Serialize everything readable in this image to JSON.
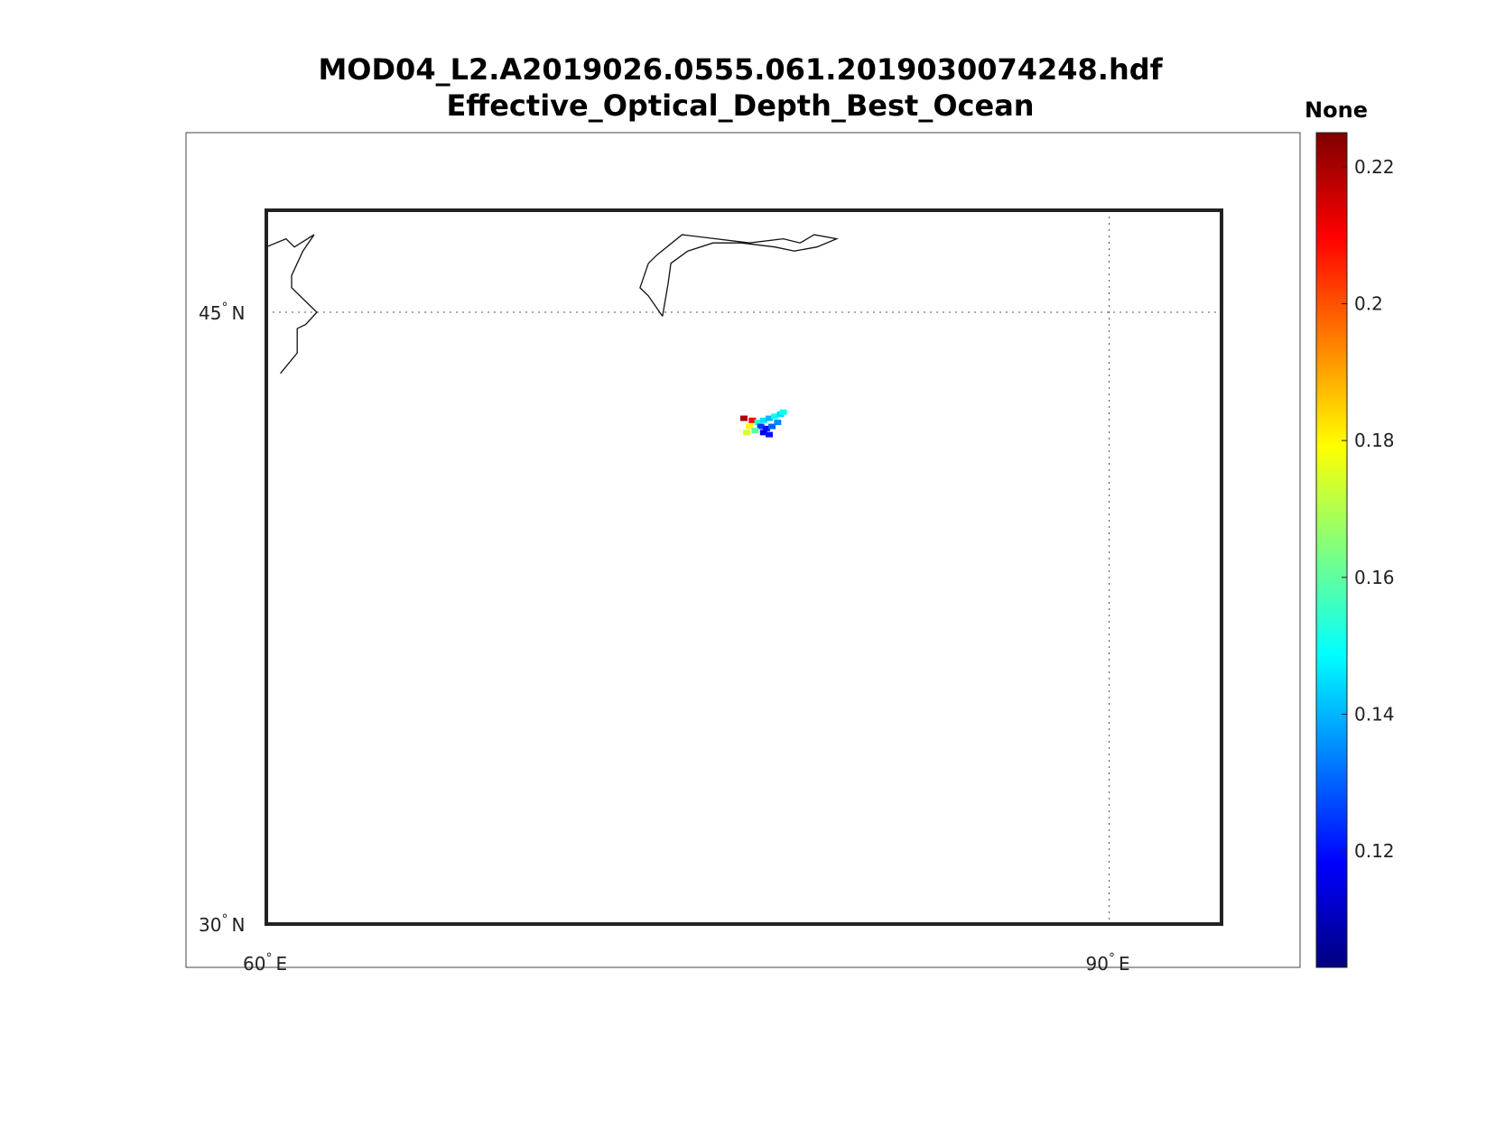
{
  "title": {
    "line1": "MOD04_L2.A2019026.0555.061.2019030074248.hdf",
    "line2": "Effective_Optical_Depth_Best_Ocean"
  },
  "map": {
    "lon_range": [
      60,
      94
    ],
    "lat_range": [
      30,
      47.5
    ],
    "parallels": [
      {
        "value": 30,
        "label": "30",
        "hem": "N"
      },
      {
        "value": 45,
        "label": "45",
        "hem": "N"
      }
    ],
    "meridians": [
      {
        "value": 60,
        "label": "60",
        "hem": "E"
      },
      {
        "value": 90,
        "label": "90",
        "hem": "E"
      }
    ],
    "coastlines": [
      [
        [
          60.0,
          46.3
        ],
        [
          60.0,
          46.6
        ],
        [
          60.7,
          46.8
        ],
        [
          61.0,
          46.6
        ],
        [
          61.7,
          46.9
        ],
        [
          61.3,
          46.5
        ],
        [
          60.9,
          45.9
        ],
        [
          60.9,
          45.6
        ],
        [
          61.8,
          45.0
        ],
        [
          61.4,
          44.7
        ],
        [
          61.1,
          44.6
        ],
        [
          61.1,
          44.0
        ],
        [
          60.5,
          43.5
        ]
      ],
      [
        [
          74.1,
          44.9
        ],
        [
          74.3,
          45.7
        ],
        [
          74.4,
          46.2
        ],
        [
          75.0,
          46.5
        ],
        [
          75.9,
          46.7
        ],
        [
          76.9,
          46.7
        ],
        [
          78.1,
          46.6
        ],
        [
          78.8,
          46.5
        ],
        [
          79.6,
          46.6
        ],
        [
          80.3,
          46.8
        ],
        [
          79.5,
          46.9
        ],
        [
          79.0,
          46.7
        ],
        [
          78.4,
          46.8
        ],
        [
          77.2,
          46.7
        ],
        [
          76.0,
          46.8
        ],
        [
          74.8,
          46.9
        ],
        [
          73.9,
          46.4
        ],
        [
          73.6,
          46.2
        ],
        [
          73.3,
          45.6
        ],
        [
          73.6,
          45.4
        ],
        [
          74.1,
          44.9
        ]
      ]
    ],
    "aod_pixels": [
      {
        "lon": 77.0,
        "lat": 42.4,
        "value": 0.22
      },
      {
        "lon": 77.3,
        "lat": 42.35,
        "value": 0.21
      },
      {
        "lon": 77.2,
        "lat": 42.2,
        "value": 0.18
      },
      {
        "lon": 77.5,
        "lat": 42.3,
        "value": 0.155
      },
      {
        "lon": 77.7,
        "lat": 42.35,
        "value": 0.145
      },
      {
        "lon": 77.9,
        "lat": 42.4,
        "value": 0.14
      },
      {
        "lon": 78.1,
        "lat": 42.45,
        "value": 0.15
      },
      {
        "lon": 78.3,
        "lat": 42.5,
        "value": 0.145
      },
      {
        "lon": 77.6,
        "lat": 42.2,
        "value": 0.125
      },
      {
        "lon": 77.8,
        "lat": 42.15,
        "value": 0.12
      },
      {
        "lon": 78.0,
        "lat": 42.2,
        "value": 0.13
      },
      {
        "lon": 78.2,
        "lat": 42.3,
        "value": 0.135
      },
      {
        "lon": 77.7,
        "lat": 42.05,
        "value": 0.115
      },
      {
        "lon": 77.9,
        "lat": 42.0,
        "value": 0.12
      },
      {
        "lon": 77.4,
        "lat": 42.1,
        "value": 0.16
      },
      {
        "lon": 77.1,
        "lat": 42.05,
        "value": 0.175
      },
      {
        "lon": 78.4,
        "lat": 42.55,
        "value": 0.15
      }
    ]
  },
  "colorbar": {
    "title": "None",
    "min": 0.103,
    "max": 0.225,
    "ticks": [
      0.12,
      0.14,
      0.16,
      0.18,
      0.2,
      0.22
    ],
    "tick_labels": [
      "0.12",
      "0.14",
      "0.16",
      "0.18",
      "0.2",
      "0.22"
    ],
    "colormap": [
      "#00007f",
      "#0000ff",
      "#007fff",
      "#00ffff",
      "#7fff7f",
      "#ffff00",
      "#ff7f00",
      "#ff0000",
      "#7f0000"
    ]
  }
}
